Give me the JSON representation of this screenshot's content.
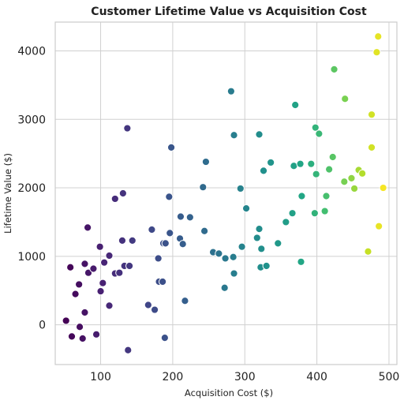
{
  "chart_data": {
    "type": "scatter",
    "title": "Customer Lifetime Value vs Acquisition Cost",
    "xlabel": "Acquisition Cost ($)",
    "ylabel": "Lifetime Value ($)",
    "xlim": [
      37,
      511
    ],
    "ylim": [
      -580,
      4420
    ],
    "xticks": [
      100,
      200,
      300,
      400,
      500
    ],
    "yticks": [
      0,
      1000,
      2000,
      3000,
      4000
    ],
    "xtick_labels": [
      "100",
      "200",
      "300",
      "400",
      "500"
    ],
    "ytick_labels": [
      "0",
      "1000",
      "2000",
      "3000",
      "4000"
    ],
    "grid": true,
    "colormap": "viridis",
    "color_by": "x",
    "color_range": [
      50,
      495
    ],
    "points": [
      {
        "x": 52,
        "y": 60
      },
      {
        "x": 58,
        "y": 840
      },
      {
        "x": 60,
        "y": -170
      },
      {
        "x": 65,
        "y": 450
      },
      {
        "x": 70,
        "y": 590
      },
      {
        "x": 71,
        "y": -30
      },
      {
        "x": 75,
        "y": -200
      },
      {
        "x": 78,
        "y": 890
      },
      {
        "x": 78,
        "y": 180
      },
      {
        "x": 82,
        "y": 1420
      },
      {
        "x": 83,
        "y": 760
      },
      {
        "x": 90,
        "y": 820
      },
      {
        "x": 94,
        "y": -140
      },
      {
        "x": 99,
        "y": 1140
      },
      {
        "x": 100,
        "y": 490
      },
      {
        "x": 103,
        "y": 610
      },
      {
        "x": 105,
        "y": 910
      },
      {
        "x": 112,
        "y": 1010
      },
      {
        "x": 112,
        "y": 280
      },
      {
        "x": 120,
        "y": 750
      },
      {
        "x": 120,
        "y": 1840
      },
      {
        "x": 126,
        "y": 760
      },
      {
        "x": 130,
        "y": 1230
      },
      {
        "x": 131,
        "y": 1920
      },
      {
        "x": 133,
        "y": 860
      },
      {
        "x": 137,
        "y": 2870
      },
      {
        "x": 138,
        "y": -370
      },
      {
        "x": 140,
        "y": 860
      },
      {
        "x": 144,
        "y": 1230
      },
      {
        "x": 166,
        "y": 290
      },
      {
        "x": 171,
        "y": 1390
      },
      {
        "x": 175,
        "y": 220
      },
      {
        "x": 180,
        "y": 970
      },
      {
        "x": 181,
        "y": 630
      },
      {
        "x": 186,
        "y": 630
      },
      {
        "x": 187,
        "y": 1190
      },
      {
        "x": 189,
        "y": -190
      },
      {
        "x": 190,
        "y": 1190
      },
      {
        "x": 195,
        "y": 1870
      },
      {
        "x": 196,
        "y": 1340
      },
      {
        "x": 198,
        "y": 2590
      },
      {
        "x": 210,
        "y": 1260
      },
      {
        "x": 211,
        "y": 1580
      },
      {
        "x": 214,
        "y": 1180
      },
      {
        "x": 217,
        "y": 350
      },
      {
        "x": 224,
        "y": 1570
      },
      {
        "x": 242,
        "y": 2010
      },
      {
        "x": 244,
        "y": 1370
      },
      {
        "x": 246,
        "y": 2380
      },
      {
        "x": 256,
        "y": 1060
      },
      {
        "x": 264,
        "y": 1040
      },
      {
        "x": 272,
        "y": 540
      },
      {
        "x": 273,
        "y": 970
      },
      {
        "x": 281,
        "y": 3410
      },
      {
        "x": 284,
        "y": 990
      },
      {
        "x": 285,
        "y": 750
      },
      {
        "x": 285,
        "y": 2770
      },
      {
        "x": 294,
        "y": 1990
      },
      {
        "x": 296,
        "y": 1140
      },
      {
        "x": 302,
        "y": 1700
      },
      {
        "x": 317,
        "y": 1270
      },
      {
        "x": 320,
        "y": 1400
      },
      {
        "x": 320,
        "y": 2780
      },
      {
        "x": 322,
        "y": 840
      },
      {
        "x": 323,
        "y": 1110
      },
      {
        "x": 326,
        "y": 2250
      },
      {
        "x": 330,
        "y": 860
      },
      {
        "x": 336,
        "y": 2370
      },
      {
        "x": 346,
        "y": 1190
      },
      {
        "x": 357,
        "y": 1500
      },
      {
        "x": 366,
        "y": 1630
      },
      {
        "x": 368,
        "y": 2320
      },
      {
        "x": 370,
        "y": 3210
      },
      {
        "x": 377,
        "y": 2350
      },
      {
        "x": 378,
        "y": 920
      },
      {
        "x": 379,
        "y": 1880
      },
      {
        "x": 392,
        "y": 2350
      },
      {
        "x": 397,
        "y": 1630
      },
      {
        "x": 398,
        "y": 2880
      },
      {
        "x": 399,
        "y": 2200
      },
      {
        "x": 403,
        "y": 2790
      },
      {
        "x": 411,
        "y": 1660
      },
      {
        "x": 413,
        "y": 1880
      },
      {
        "x": 417,
        "y": 2270
      },
      {
        "x": 422,
        "y": 2450
      },
      {
        "x": 424,
        "y": 3730
      },
      {
        "x": 438,
        "y": 2090
      },
      {
        "x": 439,
        "y": 3300
      },
      {
        "x": 448,
        "y": 2140
      },
      {
        "x": 452,
        "y": 1990
      },
      {
        "x": 458,
        "y": 2260
      },
      {
        "x": 463,
        "y": 2210
      },
      {
        "x": 471,
        "y": 1070
      },
      {
        "x": 476,
        "y": 3070
      },
      {
        "x": 476,
        "y": 2590
      },
      {
        "x": 483,
        "y": 3980
      },
      {
        "x": 485,
        "y": 4210
      },
      {
        "x": 486,
        "y": 1440
      },
      {
        "x": 492,
        "y": 2000
      }
    ]
  }
}
